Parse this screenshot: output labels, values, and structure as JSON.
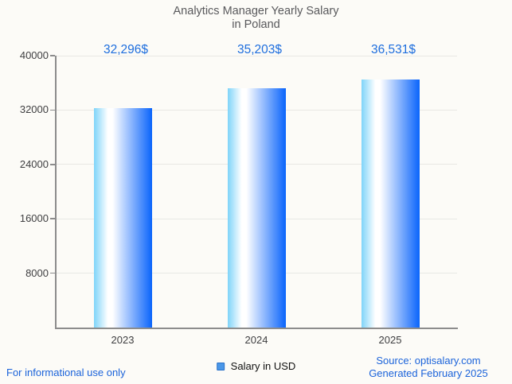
{
  "title": {
    "line1": "Analytics Manager Yearly Salary",
    "line2": "in Poland"
  },
  "chart_data": {
    "type": "bar",
    "categories": [
      "2023",
      "2024",
      "2025"
    ],
    "values": [
      32296,
      35203,
      36531
    ],
    "value_labels": [
      "32,296$",
      "35,203$",
      "36,531$"
    ],
    "series_name": "Salary in USD",
    "ylim": [
      0,
      40000
    ],
    "yticks": [
      8000,
      16000,
      24000,
      32000,
      40000
    ],
    "ytick_labels": [
      "8000",
      "16000",
      "24000",
      "32000",
      "40000"
    ],
    "grid": true,
    "legend_position": "bottom"
  },
  "legend": {
    "label": "Salary in USD"
  },
  "footer": {
    "left": "For informational use only",
    "source": "Source: optisalary.com",
    "generated": "Generated February 2025"
  },
  "colors": {
    "background": "#fcfbf7",
    "accent_blue": "#1e6ede",
    "footer_blue": "#1b63da",
    "title_gray": "#59595c",
    "axis_gray": "#8c8c8c",
    "gridline": "#e8e8e4",
    "bar_gradient_left": "#7fd4f9",
    "bar_gradient_mid": "#ffffff",
    "bar_gradient_right": "#0a64fb",
    "legend_swatch_fill": "#4a97e8",
    "legend_swatch_border": "#2b72c8"
  }
}
